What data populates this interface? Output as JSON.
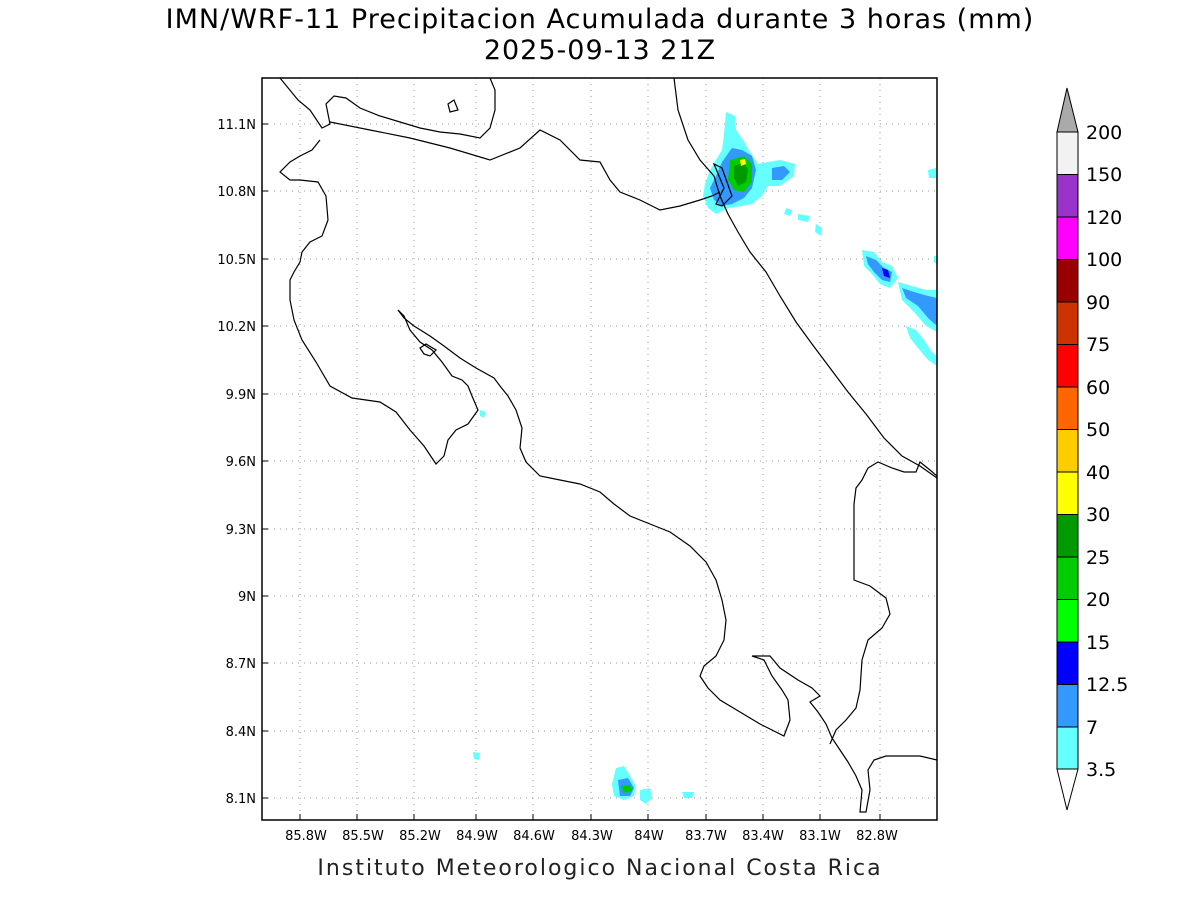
{
  "header": {
    "title_line1": "IMN/WRF-11 Precipitacion Acumulada durante 3 horas (mm)",
    "title_line2": "2025-09-13 21Z"
  },
  "footer": {
    "credit": "Instituto Meteorologico Nacional Costa Rica"
  },
  "map": {
    "lon_ticks": [
      "85.8W",
      "85.5W",
      "85.2W",
      "84.9W",
      "84.6W",
      "84.3W",
      "84W",
      "83.7W",
      "83.4W",
      "83.1W",
      "82.8W"
    ],
    "lat_ticks": [
      "11.1N",
      "10.8N",
      "10.5N",
      "10.2N",
      "9.9N",
      "9.6N",
      "9.3N",
      "9N",
      "8.7N",
      "8.4N",
      "8.1N"
    ],
    "grid": "dotted"
  },
  "legend": {
    "levels": [
      "200",
      "150",
      "120",
      "100",
      "90",
      "75",
      "60",
      "50",
      "40",
      "30",
      "25",
      "20",
      "15",
      "12.5",
      "7",
      "3.5"
    ],
    "colors": {
      "over": "#aaaaaa",
      "150_200": "#f2f2f2",
      "120_150": "#9933cc",
      "100_120": "#ff00ff",
      "90_100": "#990000",
      "75_90": "#cc3300",
      "60_75": "#ff0000",
      "50_60": "#ff6600",
      "40_50": "#ffcc00",
      "30_40": "#ffff00",
      "25_30": "#009900",
      "20_25": "#00cc00",
      "15_20": "#00ff00",
      "12_5_15": "#0000ff",
      "7_12_5": "#3399ff",
      "3_5_7": "#66ffff"
    }
  }
}
